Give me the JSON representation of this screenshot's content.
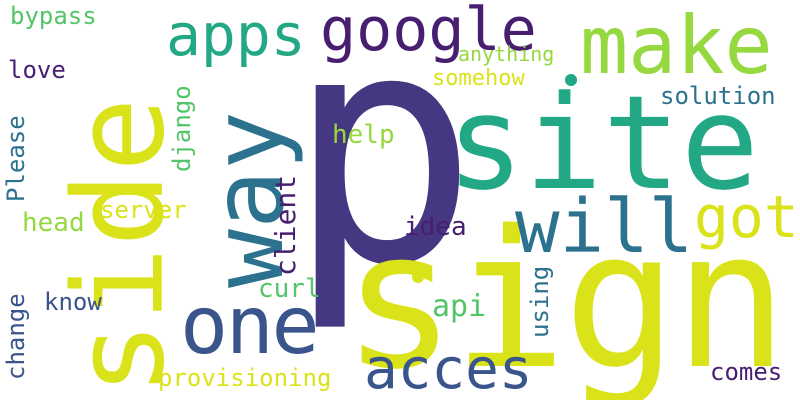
{
  "palette": {
    "indigo": "#453781",
    "yellow": "#dae319",
    "teal": "#22a884",
    "lime": "#95d840",
    "blue": "#2c728e",
    "purple": "#481f70",
    "green": "#53c568",
    "slate": "#39558c"
  },
  "words": [
    {
      "text": "p",
      "color": "indigo"
    },
    {
      "text": "sign",
      "color": "yellow"
    },
    {
      "text": "site",
      "color": "teal"
    },
    {
      "text": "side",
      "color": "yellow"
    },
    {
      "text": "make",
      "color": "lime"
    },
    {
      "text": "way",
      "color": "blue"
    },
    {
      "text": "will",
      "color": "blue"
    },
    {
      "text": "one",
      "color": "slate"
    },
    {
      "text": "google",
      "color": "purple"
    },
    {
      "text": "apps",
      "color": "teal"
    },
    {
      "text": "acces",
      "color": "slate"
    },
    {
      "text": "got",
      "color": "yellow"
    },
    {
      "text": "provisioning",
      "color": "yellow"
    },
    {
      "text": "solution",
      "color": "blue"
    },
    {
      "text": "comes",
      "color": "purple"
    },
    {
      "text": "client",
      "color": "purple"
    },
    {
      "text": "django",
      "color": "green"
    },
    {
      "text": "Please",
      "color": "blue"
    },
    {
      "text": "change",
      "color": "slate"
    },
    {
      "text": "bypass",
      "color": "green"
    },
    {
      "text": "love",
      "color": "purple"
    },
    {
      "text": "anything",
      "color": "lime"
    },
    {
      "text": "somehow",
      "color": "yellow"
    },
    {
      "text": "help",
      "color": "lime"
    },
    {
      "text": "server",
      "color": "yellow"
    },
    {
      "text": "head",
      "color": "lime"
    },
    {
      "text": "idea",
      "color": "purple"
    },
    {
      "text": "curl",
      "color": "green"
    },
    {
      "text": "api",
      "color": "green"
    },
    {
      "text": "using",
      "color": "blue"
    },
    {
      "text": "know",
      "color": "slate"
    }
  ]
}
